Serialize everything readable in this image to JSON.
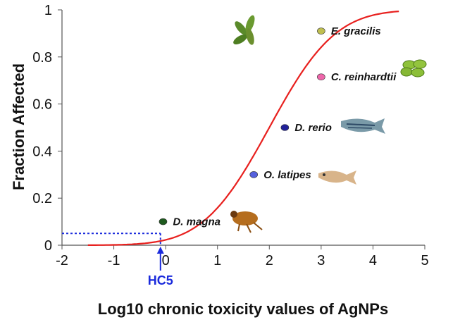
{
  "chart_data": {
    "type": "scatter",
    "xlabel": "Log10 chronic toxicity values of AgNPs",
    "ylabel": "Fraction Affected",
    "xlim": [
      -2,
      5
    ],
    "ylim": [
      0,
      1
    ],
    "x_ticks": [
      "-2",
      "-1",
      "0",
      "1",
      "2",
      "3",
      "4",
      "5"
    ],
    "y_ticks": [
      "0",
      "0.2",
      "0.4",
      "0.6",
      "0.8",
      "1"
    ],
    "grid": false,
    "curve": {
      "type": "log-normal cumulative fit",
      "color": "#e8201e",
      "x_range": [
        -1.5,
        4.5
      ],
      "mean": 2.0,
      "sd": 1.0
    },
    "points": [
      {
        "species": "D. magna",
        "x": -0.05,
        "y": 0.1,
        "color": "#1e5a1e"
      },
      {
        "species": "O. latipes",
        "x": 1.7,
        "y": 0.3,
        "color": "#5560dd"
      },
      {
        "species": "D. rerio",
        "x": 2.3,
        "y": 0.5,
        "color": "#222299"
      },
      {
        "species": "C. reinhardtii",
        "x": 3.0,
        "y": 0.715,
        "color": "#ee66aa"
      },
      {
        "species": "E. gracilis",
        "x": 3.0,
        "y": 0.91,
        "color": "#bfbf50"
      }
    ],
    "annotations": {
      "hc5_label": "HC5",
      "hc5_x": -0.1,
      "hc5_y": 0.05,
      "hc5_color": "#1a2adc"
    }
  }
}
